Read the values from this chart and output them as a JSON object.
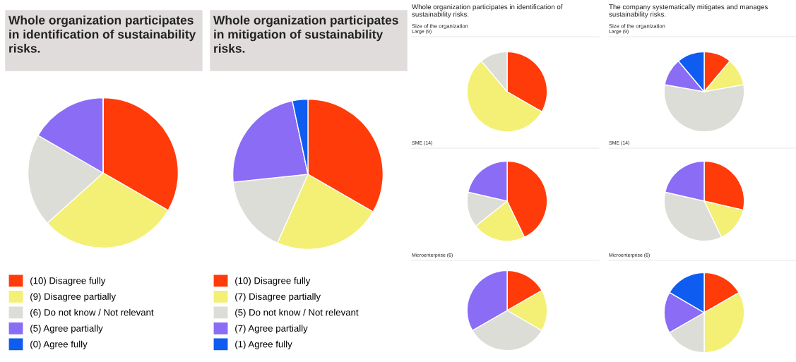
{
  "chart_data": [
    {
      "type": "pie",
      "title": "Whole organization participates in identification of sustainability risks.",
      "categories": [
        "(10) Disagree fully",
        "(9) Disagree partially",
        "(6) Do not know / Not relevant",
        "(5) Agree partially",
        "(0) Agree fully"
      ],
      "values": [
        10,
        9,
        6,
        5,
        0
      ],
      "colors": [
        "#ff3b0a",
        "#f3f075",
        "#dcddd6",
        "#8a6cf5",
        "#0f5cf0"
      ],
      "legend": "bottom"
    },
    {
      "type": "pie",
      "title": "Whole organization participates in mitigation of sustainability risks.",
      "categories": [
        "(10) Disagree fully",
        "(7) Disagree partially",
        "(5) Do not know / Not relevant",
        "(7) Agree partially",
        "(1) Agree fully"
      ],
      "values": [
        10,
        7,
        5,
        7,
        1
      ],
      "colors": [
        "#ff3b0a",
        "#f3f075",
        "#dcddd6",
        "#8a6cf5",
        "#0f5cf0"
      ],
      "legend": "bottom"
    },
    {
      "type": "pie",
      "title": "Whole organization participates in identification of sustainability risks.",
      "subtitle": "Size of the organization",
      "annotations": [
        "Large (9)"
      ],
      "categories": [
        null,
        null,
        null
      ],
      "values": [
        33.3,
        55.6,
        11.1
      ],
      "colors": [
        "#ff3b0a",
        "#f3f075",
        "#dcddd6"
      ]
    },
    {
      "type": "pie",
      "title": "SME (14)",
      "categories": [
        null,
        null,
        null,
        null
      ],
      "values": [
        42.9,
        21.4,
        14.3,
        21.4
      ],
      "colors": [
        "#ff3b0a",
        "#f3f075",
        "#dcddd6",
        "#8a6cf5"
      ]
    },
    {
      "type": "pie",
      "title": "Microenterprise (6)",
      "categories": [
        null,
        null,
        null,
        null
      ],
      "values": [
        16.7,
        16.7,
        33.3,
        33.3
      ],
      "colors": [
        "#ff3b0a",
        "#f3f075",
        "#dcddd6",
        "#8a6cf5"
      ]
    },
    {
      "type": "pie",
      "title": "The company systematically mitigates and manages sustainability risks.",
      "subtitle": "Size of the organization",
      "annotations": [
        "Large (9)"
      ],
      "categories": [
        null,
        null,
        null,
        null,
        null
      ],
      "values": [
        11.1,
        11.1,
        55.6,
        11.1,
        11.1
      ],
      "colors": [
        "#ff3b0a",
        "#f3f075",
        "#dcddd6",
        "#8a6cf5",
        "#0f5cf0"
      ]
    },
    {
      "type": "pie",
      "title": "SME (14)",
      "categories": [
        null,
        null,
        null,
        null
      ],
      "values": [
        28.6,
        14.3,
        35.7,
        21.4
      ],
      "colors": [
        "#ff3b0a",
        "#f3f075",
        "#dcddd6",
        "#8a6cf5"
      ]
    },
    {
      "type": "pie",
      "title": "Microenterprise (6)",
      "categories": [
        null,
        null,
        null,
        null,
        null
      ],
      "values": [
        16.7,
        33.3,
        16.7,
        16.7,
        16.6
      ],
      "colors": [
        "#ff3b0a",
        "#f3f075",
        "#dcddd6",
        "#8a6cf5",
        "#0f5cf0"
      ]
    }
  ]
}
